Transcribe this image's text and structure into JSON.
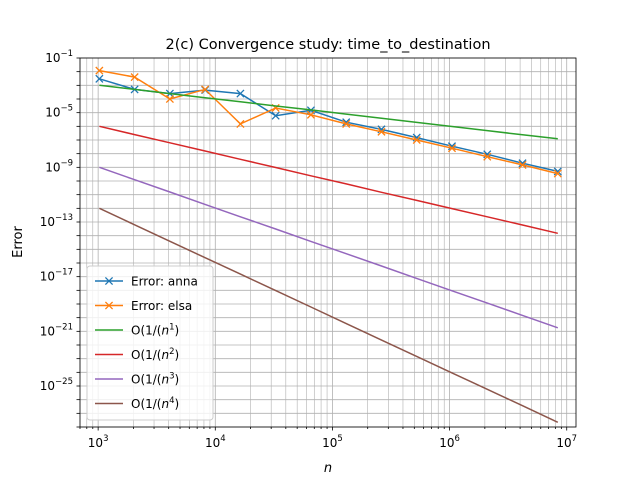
{
  "chart_data": {
    "type": "line",
    "title": "2(c) Convergence study: time_to_destination",
    "xlabel": "n",
    "ylabel": "Error",
    "xscale": "log",
    "yscale": "log",
    "xlim": [
      700,
      12000000
    ],
    "ylim": [
      1e-28,
      0.1
    ],
    "grid": true,
    "legend_position": "lower-left",
    "x_ticks": [
      {
        "value": 1000,
        "base": "10",
        "exp": "3"
      },
      {
        "value": 10000,
        "base": "10",
        "exp": "4"
      },
      {
        "value": 100000,
        "base": "10",
        "exp": "5"
      },
      {
        "value": 1000000,
        "base": "10",
        "exp": "6"
      },
      {
        "value": 10000000,
        "base": "10",
        "exp": "7"
      }
    ],
    "y_ticks": [
      {
        "value": 0.1,
        "base": "10",
        "exp": "−1"
      },
      {
        "value": 1e-05,
        "base": "10",
        "exp": "−5"
      },
      {
        "value": 1e-09,
        "base": "10",
        "exp": "−9"
      },
      {
        "value": 1e-13,
        "base": "10",
        "exp": "−13"
      },
      {
        "value": 1e-17,
        "base": "10",
        "exp": "−17"
      },
      {
        "value": 1e-21,
        "base": "10",
        "exp": "−21"
      },
      {
        "value": 1e-25,
        "base": "10",
        "exp": "−25"
      }
    ],
    "x": [
      1024,
      2048,
      4096,
      8192,
      16384,
      32768,
      65536,
      131072,
      262144,
      524288,
      1048576,
      2097152,
      4194304,
      8388608
    ],
    "series": [
      {
        "name": "Error: anna",
        "color": "#1f77b4",
        "marker": "x",
        "values": [
          0.003,
          0.0005,
          0.00025,
          0.00045,
          0.00025,
          6e-06,
          1.5e-05,
          2e-06,
          6e-07,
          1.5e-07,
          3.5e-08,
          9e-09,
          2e-09,
          5e-10
        ]
      },
      {
        "name": "Error: elsa",
        "color": "#ff7f0e",
        "marker": "x",
        "values": [
          0.012,
          0.004,
          0.0001,
          0.0005,
          1.5e-06,
          2.2e-05,
          7e-06,
          1.5e-06,
          4e-07,
          1e-07,
          2.5e-08,
          6e-09,
          1.5e-09,
          3.5e-10
        ]
      },
      {
        "name_prefix": "O(1/(",
        "name_var": "n",
        "name_exp": "1",
        "name_suffix": ")",
        "color": "#2ca02c",
        "marker": "",
        "values": [
          0.001,
          0.0005,
          0.00025,
          0.000125,
          6.25e-05,
          3.1e-05,
          1.6e-05,
          7.8e-06,
          3.9e-06,
          1.95e-06,
          9.8e-07,
          4.9e-07,
          2.4e-07,
          1.22e-07
        ]
      },
      {
        "name_prefix": "O(1/(",
        "name_var": "n",
        "name_exp": "2",
        "name_suffix": ")",
        "color": "#d62728",
        "marker": "",
        "values": [
          1e-06,
          2.5e-07,
          6.25e-08,
          1.56e-08,
          3.9e-09,
          9.8e-10,
          2.4e-10,
          6.1e-11,
          1.5e-11,
          3.8e-12,
          9.5e-13,
          2.4e-13,
          6e-14,
          1.5e-14
        ]
      },
      {
        "name_prefix": "O(1/(",
        "name_var": "n",
        "name_exp": "3",
        "name_suffix": ")",
        "color": "#9467bd",
        "marker": "",
        "values": [
          1e-09,
          1.25e-10,
          1.56e-11,
          1.95e-12,
          2.4e-13,
          3.05e-14,
          3.8e-15,
          4.8e-16,
          6e-17,
          7.5e-18,
          9.3e-19,
          1.16e-19,
          1.46e-20,
          1.82e-21
        ]
      },
      {
        "name_prefix": "O(1/(",
        "name_var": "n",
        "name_exp": "4",
        "name_suffix": ")",
        "color": "#8c564b",
        "marker": "",
        "values": [
          1e-12,
          6.25e-14,
          3.9e-15,
          2.44e-16,
          1.53e-17,
          9.5e-19,
          6e-20,
          3.7e-21,
          2.3e-22,
          1.46e-23,
          9.1e-25,
          5.7e-26,
          3.6e-27,
          2.2e-28
        ]
      }
    ]
  }
}
